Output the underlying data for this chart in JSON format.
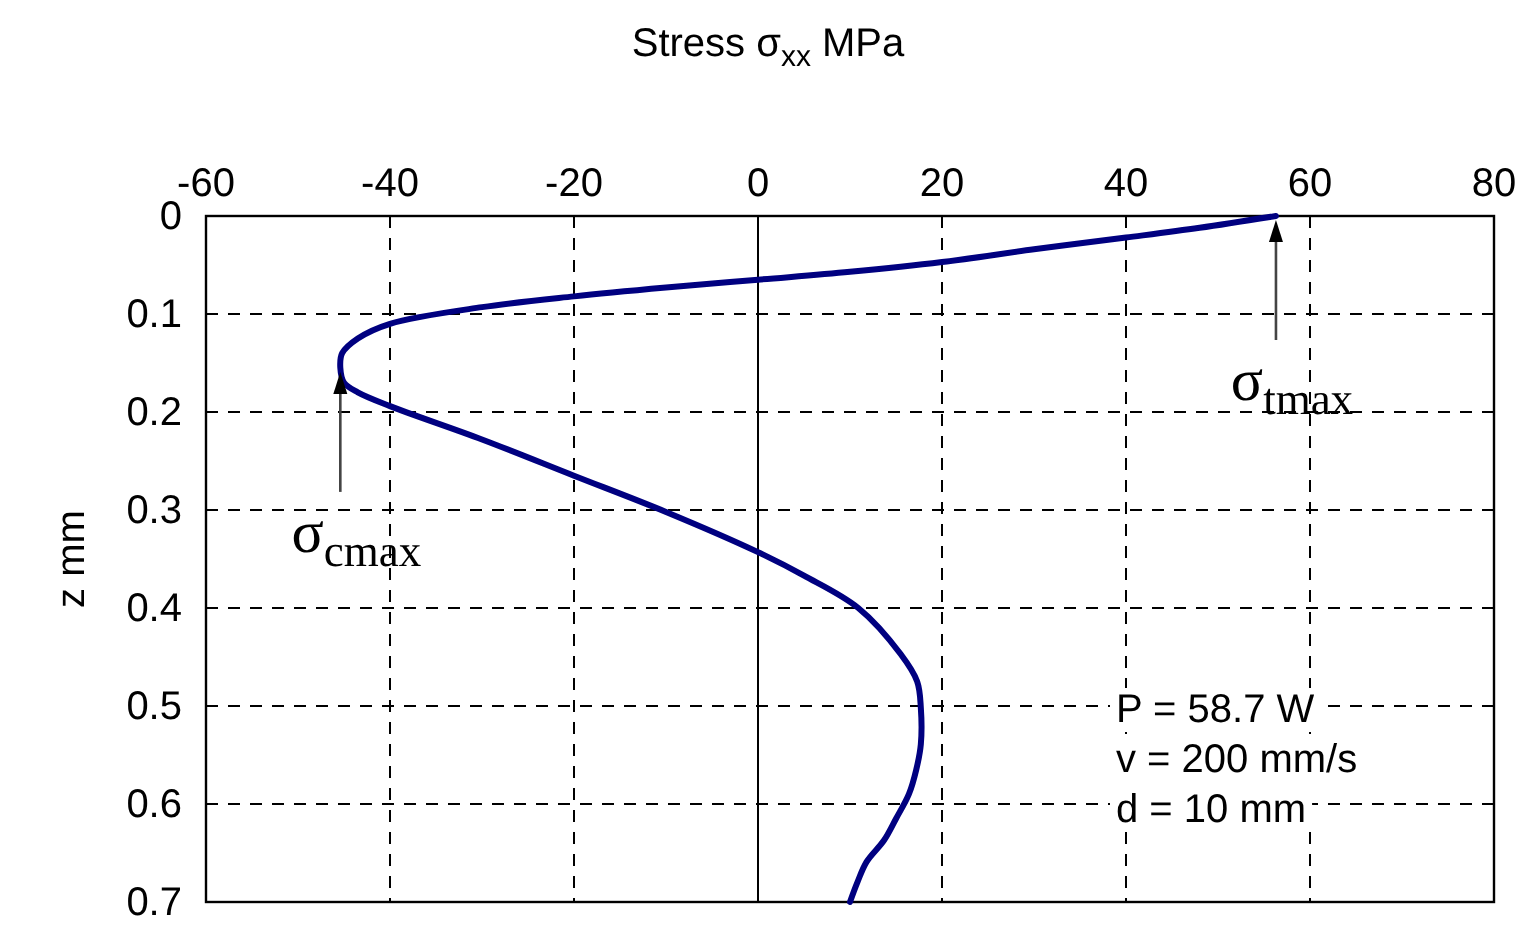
{
  "chart_data": {
    "type": "line",
    "xlabel": "Stress σ$_{xx}$  MPa",
    "ylabel": "z  mm",
    "xlim": [
      -60,
      80
    ],
    "xticks": [
      -60,
      -40,
      -20,
      0,
      20,
      40,
      60,
      80
    ],
    "ylim": [
      0.7,
      0
    ],
    "yticks": [
      0,
      0.1,
      0.2,
      0.3,
      0.4,
      0.5,
      0.6,
      0.7
    ],
    "grid": true,
    "line_style": "solid",
    "marker": "none",
    "ref_lines": [
      {
        "axis": "x",
        "value": 0,
        "color": "#000000",
        "line_style": "solid"
      }
    ],
    "series": [
      {
        "color": "#000080",
        "x": [
          56.3,
          48,
          40,
          30,
          20,
          10,
          0,
          -10,
          -20,
          -30,
          -40,
          -43.5,
          -45.2,
          -45.4,
          -45,
          -43.5,
          -40,
          -30,
          -20,
          -10,
          0,
          5,
          10.9,
          15.5,
          17.3,
          17.7,
          17.7,
          17.2,
          16.4,
          15,
          13.7,
          11.8,
          10.8,
          10
        ],
        "values": [
          0,
          0.012,
          0.022,
          0.034,
          0.047,
          0.057,
          0.065,
          0.073,
          0.082,
          0.093,
          0.11,
          0.125,
          0.14,
          0.155,
          0.17,
          0.18,
          0.194,
          0.228,
          0.265,
          0.302,
          0.343,
          0.367,
          0.4,
          0.447,
          0.475,
          0.502,
          0.539,
          0.565,
          0.59,
          0.615,
          0.637,
          0.659,
          0.68,
          0.7
        ]
      }
    ],
    "annotations": [
      {
        "text": "σ$_{tmax}$",
        "x": 56.3,
        "y": 0
      },
      {
        "text": "σ$_{cmax}$",
        "x": -45.4,
        "y": 0.155
      },
      "P = 58.7 W",
      "v = 200 mm/s",
      "d = 10 mm"
    ]
  }
}
